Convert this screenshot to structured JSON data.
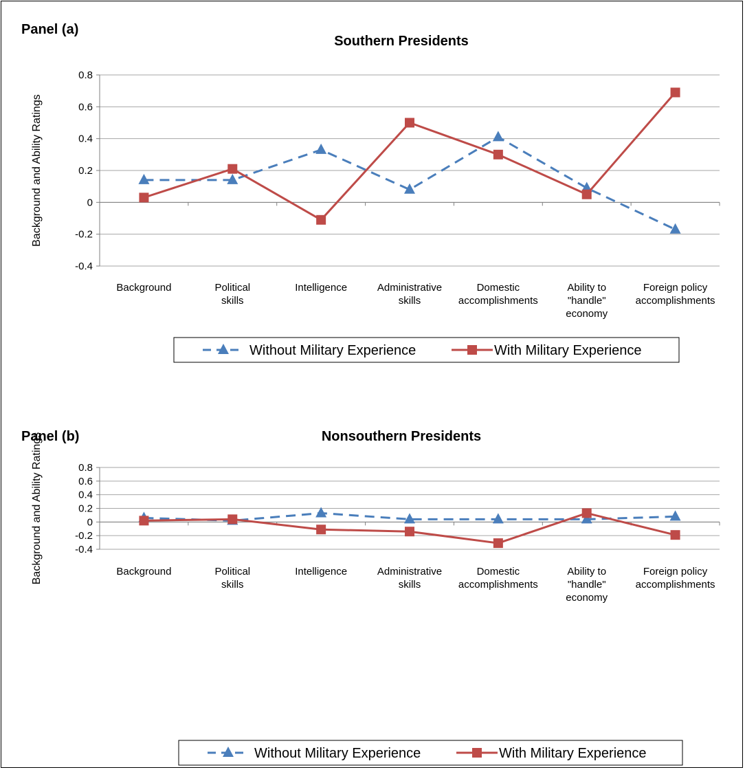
{
  "chart_data": [
    {
      "type": "line",
      "panel_label": "Panel (a)",
      "title": "Southern Presidents",
      "ylabel": "Background and Ability Ratings",
      "ylim": [
        -0.4,
        0.8
      ],
      "yticks": [
        "0.8",
        "0.6",
        "0.4",
        "0.2",
        "0",
        "-0.2",
        "-0.4"
      ],
      "categories": [
        [
          "Background"
        ],
        [
          "Political",
          "skills"
        ],
        [
          "Intelligence"
        ],
        [
          "Administrative",
          "skills"
        ],
        [
          "Domestic",
          "accomplishments"
        ],
        [
          "Ability to",
          "\"handle\"",
          "economy"
        ],
        [
          "Foreign policy",
          "accomplishments"
        ]
      ],
      "legend": {
        "position": "bottom",
        "entries": [
          "Without Military Experience",
          "With Military Experience"
        ]
      },
      "series": [
        {
          "name": "Without Military Experience",
          "color": "#4a7ebb",
          "marker": "triangle",
          "dash": true,
          "values": [
            0.14,
            0.14,
            0.33,
            0.08,
            0.41,
            0.09,
            -0.17
          ]
        },
        {
          "name": "With Military Experience",
          "color": "#be4b48",
          "marker": "square",
          "dash": false,
          "values": [
            0.03,
            0.21,
            -0.11,
            0.5,
            0.3,
            0.05,
            0.69
          ]
        }
      ]
    },
    {
      "type": "line",
      "panel_label": "Panel (b)",
      "title": "Nonsouthern Presidents",
      "ylabel": "Background and Ability Ratings",
      "ylim": [
        -0.4,
        0.8
      ],
      "yticks": [
        "0.8",
        "0.6",
        "0.4",
        "0.2",
        "0",
        "-0.2",
        "-0.4"
      ],
      "categories": [
        [
          "Background"
        ],
        [
          "Political",
          "skills"
        ],
        [
          "Intelligence"
        ],
        [
          "Administrative",
          "skills"
        ],
        [
          "Domestic",
          "accomplishments"
        ],
        [
          "Ability to",
          "\"handle\"",
          "economy"
        ],
        [
          "Foreign policy",
          "accomplishments"
        ]
      ],
      "legend": {
        "position": "bottom",
        "entries": [
          "Without Military Experience",
          "With Military Experience"
        ]
      },
      "series": [
        {
          "name": "Without Military Experience",
          "color": "#4a7ebb",
          "marker": "triangle",
          "dash": true,
          "values": [
            0.06,
            0.02,
            0.13,
            0.04,
            0.04,
            0.04,
            0.08
          ]
        },
        {
          "name": "With Military Experience",
          "color": "#be4b48",
          "marker": "square",
          "dash": false,
          "values": [
            0.02,
            0.04,
            -0.11,
            -0.14,
            -0.31,
            0.13,
            -0.19
          ]
        }
      ]
    }
  ]
}
